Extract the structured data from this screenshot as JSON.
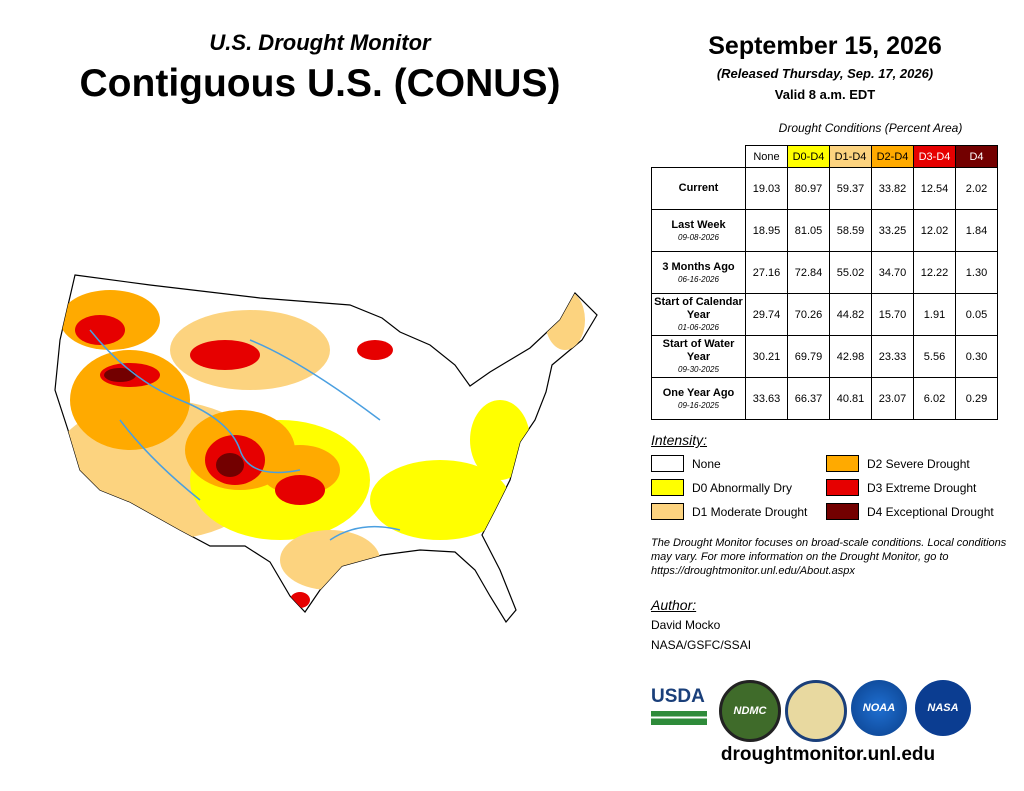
{
  "header": {
    "subtitle": "U.S. Drought Monitor",
    "title": "Contiguous U.S. (CONUS)"
  },
  "date": {
    "title": "September 15, 2026",
    "released": "(Released Thursday, Sep. 17, 2026)",
    "valid": "Valid 8 a.m. EDT"
  },
  "table": {
    "caption": "Drought Conditions (Percent Area)",
    "columns": [
      {
        "label": "None",
        "color": "#ffffff",
        "text": "#000000"
      },
      {
        "label": "D0-D4",
        "color": "#ffff00",
        "text": "#000000"
      },
      {
        "label": "D1-D4",
        "color": "#fcd37f",
        "text": "#000000"
      },
      {
        "label": "D2-D4",
        "color": "#ffaa00",
        "text": "#000000"
      },
      {
        "label": "D3-D4",
        "color": "#e60000",
        "text": "#ffffff"
      },
      {
        "label": "D4",
        "color": "#730000",
        "text": "#ffffff"
      }
    ],
    "rows": [
      {
        "label": "Current",
        "cells": [
          "19.03",
          "80.97",
          "59.37",
          "33.82",
          "12.54",
          "2.02"
        ]
      },
      {
        "label": "Last Week",
        "date": "09-08-2026",
        "cells": [
          "18.95",
          "81.05",
          "58.59",
          "33.25",
          "12.02",
          "1.84"
        ]
      },
      {
        "label": "3 Months Ago",
        "date": "06-16-2026",
        "cells": [
          "27.16",
          "72.84",
          "55.02",
          "34.70",
          "12.22",
          "1.30"
        ]
      },
      {
        "label": "Start of Calendar Year",
        "date": "01-06-2026",
        "cells": [
          "29.74",
          "70.26",
          "44.82",
          "15.70",
          "1.91",
          "0.05"
        ]
      },
      {
        "label": "Start of Water Year",
        "date": "09-30-2025",
        "cells": [
          "30.21",
          "69.79",
          "42.98",
          "23.33",
          "5.56",
          "0.30"
        ]
      },
      {
        "label": "One Year Ago",
        "date": "09-16-2025",
        "cells": [
          "33.63",
          "66.37",
          "40.81",
          "23.07",
          "6.02",
          "0.29"
        ]
      }
    ]
  },
  "legend": {
    "title": "Intensity:",
    "items": [
      {
        "label": "None",
        "color": "#ffffff"
      },
      {
        "label": "D0 Abnormally Dry",
        "color": "#ffff00"
      },
      {
        "label": "D1 Moderate Drought",
        "color": "#fcd37f"
      },
      {
        "label": "D2 Severe Drought",
        "color": "#ffaa00"
      },
      {
        "label": "D3 Extreme Drought",
        "color": "#e60000"
      },
      {
        "label": "D4 Exceptional Drought",
        "color": "#730000"
      }
    ]
  },
  "note": "The Drought Monitor focuses on broad-scale conditions. Local conditions may vary. For more information on the Drought Monitor, go to https://droughtmonitor.unl.edu/About.aspx",
  "author": {
    "title": "Author:",
    "lines": [
      "David Mocko",
      "NASA/GSFC/SSAI"
    ]
  },
  "logos": [
    "USDA",
    "NDMC",
    "NOAA",
    "NASA"
  ],
  "url": "droughtmonitor.unl.edu"
}
